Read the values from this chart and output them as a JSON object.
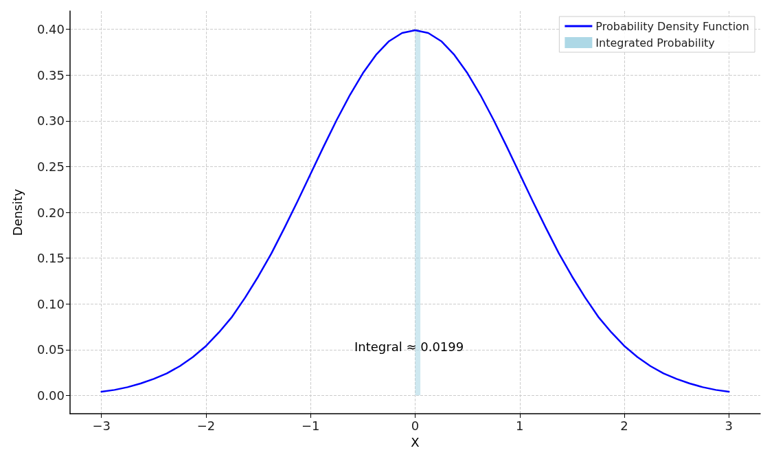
{
  "chart_data": {
    "type": "line",
    "xlabel": "X",
    "ylabel": "Density",
    "xlim": [
      -3.3,
      3.3
    ],
    "ylim": [
      -0.02,
      0.42
    ],
    "xticks": [
      {
        "value": -3,
        "label": "−3"
      },
      {
        "value": -2,
        "label": "−2"
      },
      {
        "value": -1,
        "label": "−1"
      },
      0,
      1,
      2,
      3
    ],
    "yticks": [
      {
        "value": 0,
        "label": "0.00"
      },
      {
        "value": 0.05,
        "label": "0.05"
      },
      {
        "value": 0.1,
        "label": "0.10"
      },
      {
        "value": 0.15,
        "label": "0.15"
      },
      {
        "value": 0.2,
        "label": "0.20"
      },
      {
        "value": 0.25,
        "label": "0.25"
      },
      {
        "value": 0.3,
        "label": "0.30"
      },
      {
        "value": 0.35,
        "label": "0.35"
      },
      {
        "value": 0.4,
        "label": "0.40"
      }
    ],
    "grid": true,
    "legend": "top right",
    "line_style": "solid",
    "marker": "none",
    "annotations": [
      "Integral ≈ 0.0199"
    ],
    "series": [
      {
        "name": "Probability Density Function",
        "color": "#0000ff",
        "x": [
          -3,
          -2.875,
          -2.75,
          -2.625,
          -2.5,
          -2.375,
          -2.25,
          -2.125,
          -2,
          -1.875,
          -1.75,
          -1.625,
          -1.5,
          -1.375,
          -1.25,
          -1.125,
          -1,
          -0.875,
          -0.75,
          -0.625,
          -0.5,
          -0.375,
          -0.25,
          -0.125,
          0,
          0.125,
          0.25,
          0.375,
          0.5,
          0.625,
          0.75,
          0.875,
          1,
          1.125,
          1.25,
          1.375,
          1.5,
          1.625,
          1.75,
          1.875,
          2,
          2.125,
          2.25,
          2.375,
          2.5,
          2.625,
          2.75,
          2.875,
          3
        ],
        "values": [
          0.004,
          0.006,
          0.009,
          0.013,
          0.018,
          0.024,
          0.032,
          0.042,
          0.054,
          0.069,
          0.086,
          0.107,
          0.13,
          0.155,
          0.183,
          0.212,
          0.242,
          0.272,
          0.301,
          0.328,
          0.352,
          0.372,
          0.387,
          0.396,
          0.399,
          0.396,
          0.387,
          0.372,
          0.352,
          0.328,
          0.301,
          0.272,
          0.242,
          0.212,
          0.183,
          0.155,
          0.13,
          0.107,
          0.086,
          0.069,
          0.054,
          0.042,
          0.032,
          0.024,
          0.018,
          0.013,
          0.009,
          0.006,
          0.004
        ]
      },
      {
        "name": "Integrated Probability",
        "type": "area",
        "color": "#add8e6",
        "x": [
          0,
          0.05
        ],
        "values": [
          0.399,
          0.399
        ]
      }
    ]
  }
}
